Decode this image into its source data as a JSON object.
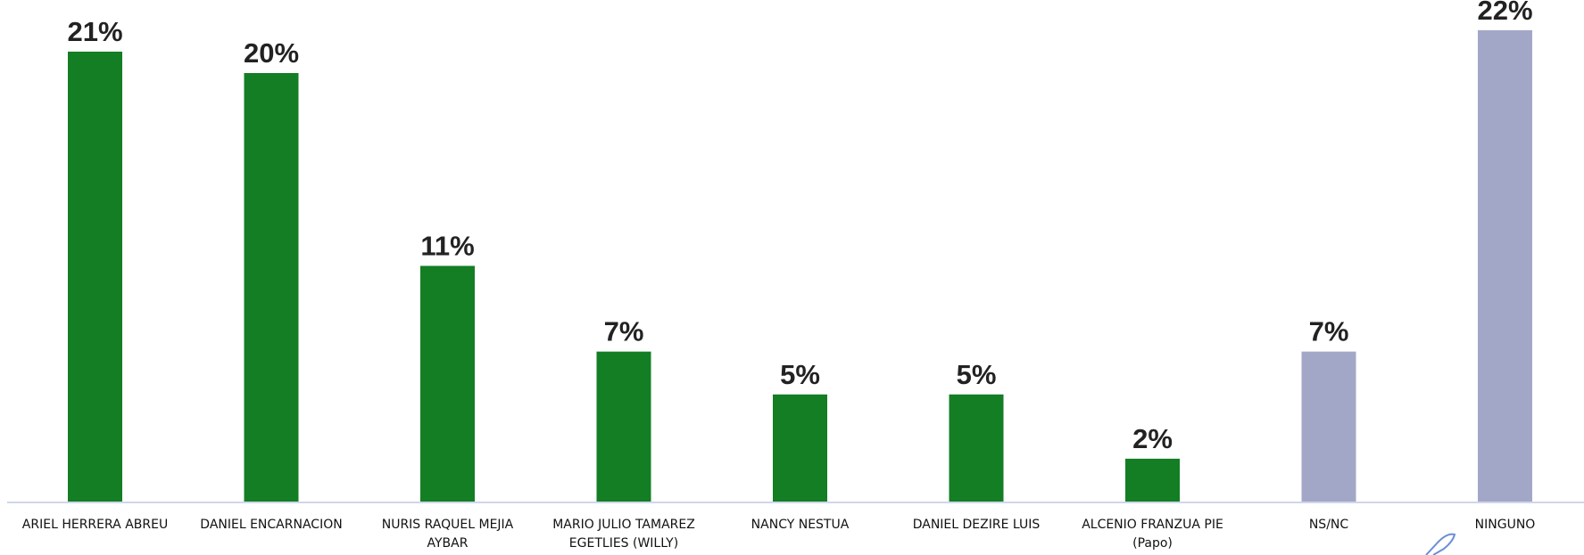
{
  "chart_data": {
    "type": "bar",
    "title": "",
    "xlabel": "",
    "ylabel": "",
    "ylim": [
      0,
      22
    ],
    "grid": false,
    "legend": "none",
    "categories": [
      [
        "ARIEL HERRERA ABREU"
      ],
      [
        "DANIEL ENCARNACION"
      ],
      [
        "NURIS RAQUEL MEJIA",
        "AYBAR"
      ],
      [
        "MARIO JULIO TAMAREZ",
        "EGETLIES (WILLY)"
      ],
      [
        "NANCY NESTUA"
      ],
      [
        "DANIEL DEZIRE LUIS"
      ],
      [
        "ALCENIO FRANZUA PIE",
        "(Papo)"
      ],
      [
        "NS/NC"
      ],
      [
        "NINGUNO"
      ]
    ],
    "values": [
      21,
      20,
      11,
      7,
      5,
      5,
      2,
      7,
      22
    ],
    "value_labels": [
      "21%",
      "20%",
      "11%",
      "7%",
      "5%",
      "5%",
      "2%",
      "7%",
      "22%"
    ],
    "colors": [
      "#137e24",
      "#137e24",
      "#137e24",
      "#137e24",
      "#137e24",
      "#137e24",
      "#137e24",
      "#a3a7c7",
      "#a3a7c7"
    ],
    "axis_color": "#cfd6ea"
  }
}
